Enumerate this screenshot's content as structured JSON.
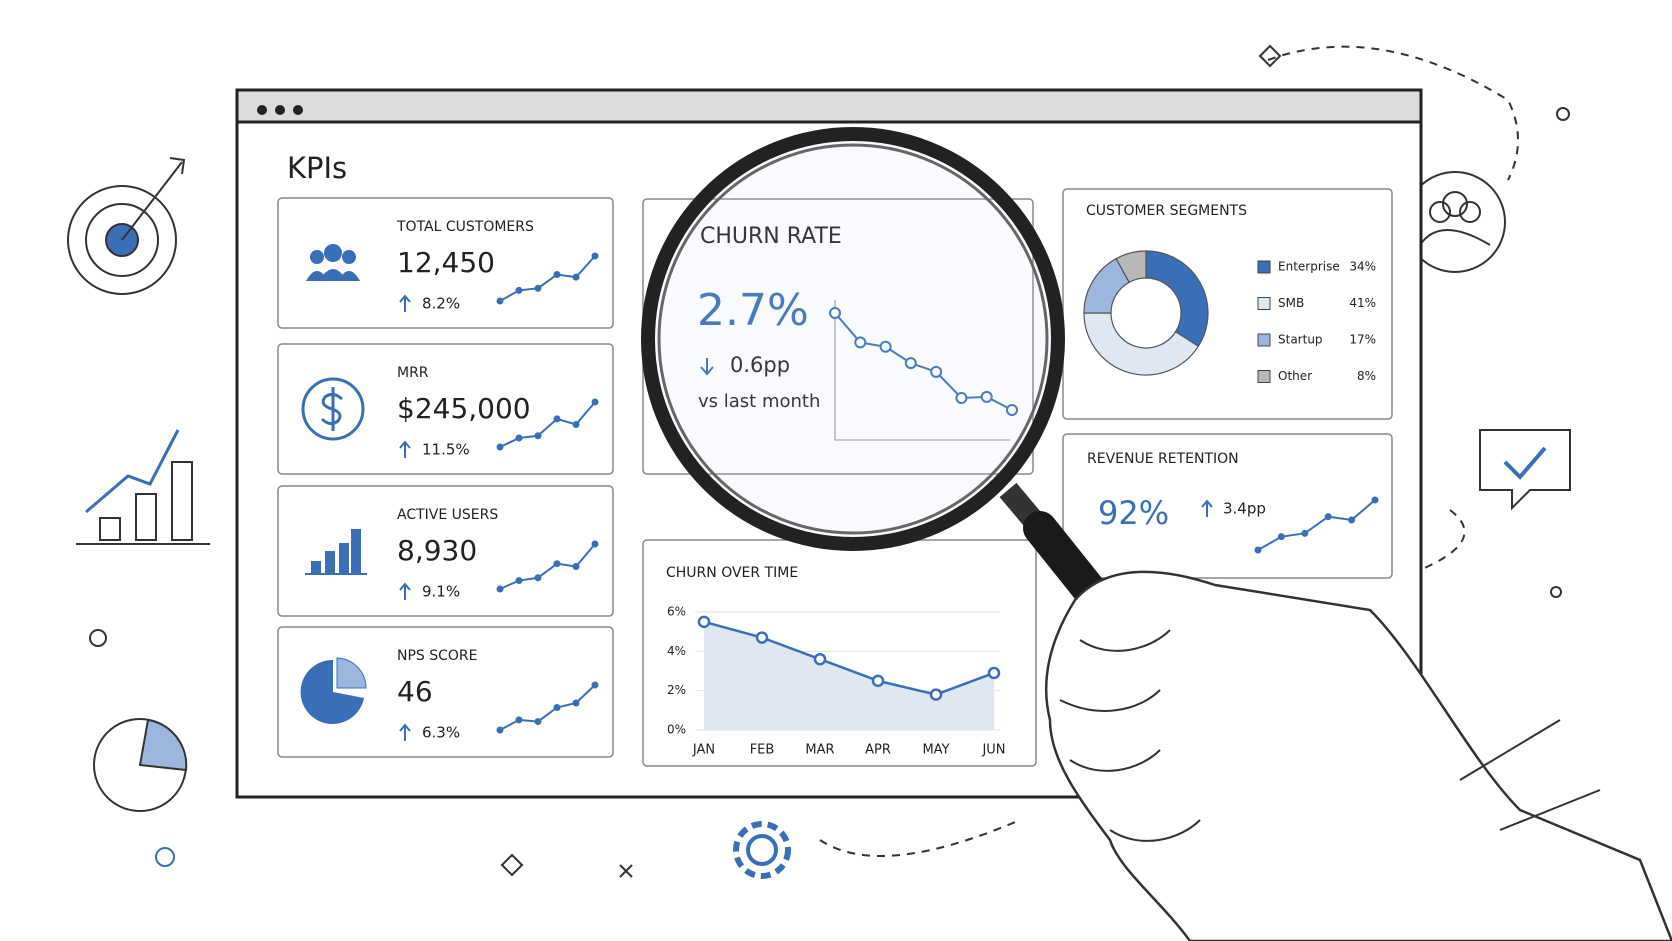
{
  "header": {
    "title": "KPIs"
  },
  "kpis": [
    {
      "label": "TOTAL CUSTOMERS",
      "value": "12,450",
      "change": "8.2%",
      "trend": [
        1,
        3,
        3.4,
        6,
        5.5,
        9.5
      ]
    },
    {
      "label": "MRR",
      "value": "$245,000",
      "change": "11.5%",
      "trend": [
        1,
        2.6,
        3,
        6,
        5,
        9
      ]
    },
    {
      "label": "ACTIVE USERS",
      "value": "8,930",
      "change": "9.1%",
      "trend": [
        1,
        2.5,
        3,
        5.5,
        5,
        9
      ]
    },
    {
      "label": "NPS SCORE",
      "value": "46",
      "change": "6.3%",
      "trend": [
        1,
        2.8,
        2.5,
        5,
        5.8,
        9
      ]
    }
  ],
  "churn_rate": {
    "title": "CHURN RATE",
    "value": "2.7%",
    "change": "0.6pp",
    "note": "vs last month",
    "trend": [
      10.6,
      7.9,
      7.5,
      6.0,
      5.2,
      2.8,
      2.9,
      1.7
    ]
  },
  "revenue_retention": {
    "title": "REVENUE RETENTION",
    "value": "92%",
    "change": "3.4pp",
    "trend": [
      1,
      3,
      3.5,
      6,
      5.5,
      8.5
    ]
  },
  "chart_data": [
    {
      "type": "pie",
      "title": "CUSTOMER SEGMENTS",
      "donut": true,
      "categories": [
        "Enterprise",
        "SMB",
        "Startup",
        "Other"
      ],
      "values": [
        34,
        41,
        17,
        8
      ],
      "value_labels": [
        "34%",
        "41%",
        "17%",
        "8%"
      ],
      "colors": [
        "#3a6fb8",
        "#dfe7f3",
        "#9db6de",
        "#b8b8b8"
      ]
    },
    {
      "type": "line",
      "title": "CHURN OVER TIME",
      "area": true,
      "color": "#3a6fb8",
      "categories": [
        "JAN",
        "FEB",
        "MAR",
        "APR",
        "MAY",
        "JUN"
      ],
      "values": [
        5.5,
        4.7,
        3.6,
        2.5,
        1.8,
        2.9
      ],
      "ylim": [
        0,
        6
      ],
      "yticks": [
        {
          "value": 0,
          "label": "0%"
        },
        {
          "value": 2,
          "label": "2%"
        },
        {
          "value": 4,
          "label": "4%"
        },
        {
          "value": 6,
          "label": "6%"
        }
      ]
    }
  ]
}
